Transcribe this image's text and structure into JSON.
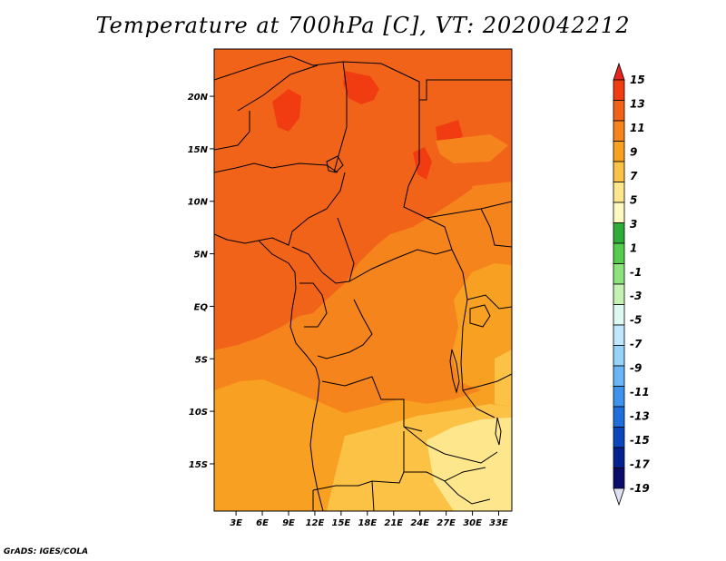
{
  "title": "Temperature at 700hPa [C], VT: 2020042212",
  "credit": "GrADS: IGES/COLA",
  "map": {
    "region": "Central Africa",
    "lat_labels": [
      "20N",
      "15N",
      "10N",
      "5N",
      "EQ",
      "5S",
      "10S",
      "15S"
    ],
    "lat_values": [
      20,
      15,
      10,
      5,
      0,
      -5,
      -10,
      -15
    ],
    "lon_labels": [
      "3E",
      "6E",
      "9E",
      "12E",
      "15E",
      "18E",
      "21E",
      "24E",
      "27E",
      "30E",
      "33E"
    ],
    "lon_values": [
      3,
      6,
      9,
      12,
      15,
      18,
      21,
      24,
      27,
      30,
      33
    ],
    "lat_range": [
      -19.5,
      24.5
    ],
    "lon_range": [
      0.5,
      34.5
    ]
  },
  "colorbar": {
    "labels": [
      "15",
      "13",
      "11",
      "9",
      "7",
      "5",
      "3",
      "1",
      "-1",
      "-3",
      "-5",
      "-7",
      "-9",
      "-11",
      "-13",
      "-15",
      "-17",
      "-19"
    ],
    "colors": [
      "#e8221c",
      "#f03c10",
      "#f2631a",
      "#f6841d",
      "#f8a021",
      "#fbc245",
      "#fde68c",
      "#fcf8c0",
      "#2fad3a",
      "#56cc4f",
      "#8ee27e",
      "#c3f2b3",
      "#def9f2",
      "#bfe7fb",
      "#96d2fa",
      "#69b5f5",
      "#3e93ec",
      "#1f6edc",
      "#0c46bd",
      "#03218f",
      "#0b0b6a",
      "#e0e0f4"
    ]
  }
}
